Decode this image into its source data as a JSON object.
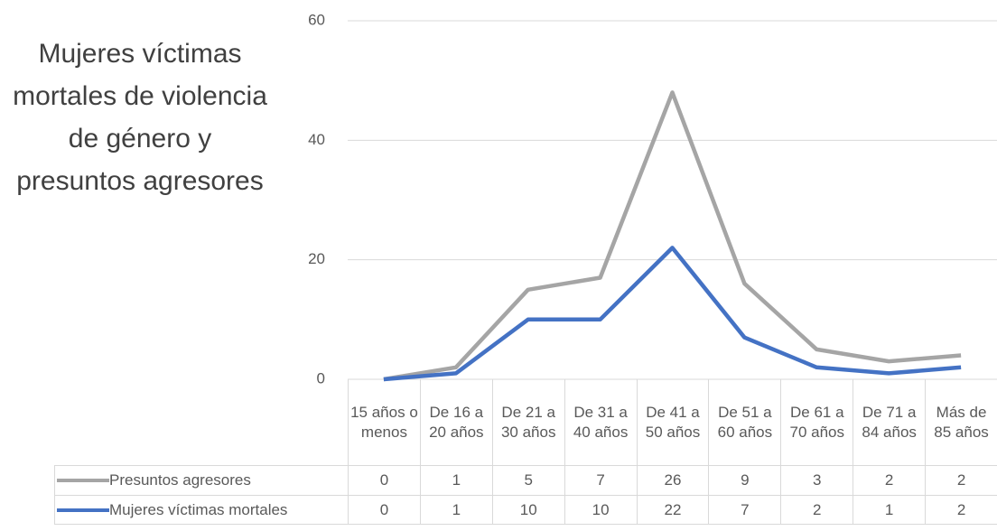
{
  "chart_data": {
    "type": "line",
    "stacked": true,
    "title": "Mujeres víctimas mortales de violencia de género y presuntos agresores",
    "categories": [
      "15 años o menos",
      "De 16 a 20 años",
      "De 21 a 30 años",
      "De 31 a 40 años",
      "De 41 a 50 años",
      "De 51 a 60 años",
      "De 61 a 70 años",
      "De 71 a 84 años",
      "Más de 85 años"
    ],
    "series": [
      {
        "name": "Mujeres víctimas mortales",
        "color": "#4472c4",
        "values": [
          0,
          1,
          10,
          10,
          22,
          7,
          2,
          1,
          2
        ]
      },
      {
        "name": "Presuntos agresores",
        "color": "#a5a5a5",
        "values": [
          0,
          1,
          5,
          7,
          26,
          9,
          3,
          2,
          2
        ]
      }
    ],
    "ylim": [
      0,
      60
    ],
    "yticks": [
      0,
      20,
      40,
      60
    ],
    "grid": true,
    "data_table": true
  }
}
